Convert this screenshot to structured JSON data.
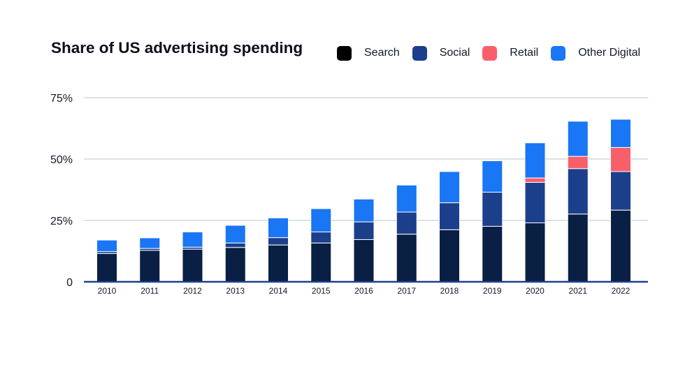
{
  "chart_data": {
    "type": "bar",
    "stacked": true,
    "title": "Share of US advertising spending",
    "xlabel": "",
    "ylabel": "",
    "ylim": [
      0,
      75
    ],
    "yticks": [
      {
        "value": 0,
        "label": "0"
      },
      {
        "value": 25,
        "label": "25%"
      },
      {
        "value": 50,
        "label": "50%"
      },
      {
        "value": 75,
        "label": "75%"
      }
    ],
    "grid": true,
    "legend_position": "top-right",
    "categories": [
      "2010",
      "2011",
      "2012",
      "2013",
      "2014",
      "2015",
      "2016",
      "2017",
      "2018",
      "2019",
      "2020",
      "2021",
      "2022"
    ],
    "series": [
      {
        "name": "Search",
        "color": "#0a1f44",
        "values": [
          11.5,
          12.8,
          13.3,
          14.0,
          15.0,
          15.8,
          17.2,
          19.4,
          21.2,
          22.6,
          24.0,
          27.6,
          29.2
        ]
      },
      {
        "name": "Social",
        "color": "#1c3f8c",
        "values": [
          0.8,
          0.8,
          0.8,
          1.8,
          3.0,
          4.5,
          7.2,
          9.0,
          11.0,
          13.9,
          16.5,
          18.5,
          15.7
        ]
      },
      {
        "name": "Retail",
        "color": "#f95f6b",
        "values": [
          0,
          0,
          0,
          0,
          0,
          0,
          0,
          0,
          0,
          0,
          1.8,
          5.0,
          9.8
        ]
      },
      {
        "name": "Other Digital",
        "color": "#1976f4",
        "values": [
          4.7,
          4.3,
          6.2,
          7.2,
          8.0,
          9.5,
          9.3,
          11.0,
          12.7,
          12.8,
          14.3,
          14.3,
          11.5
        ]
      }
    ]
  }
}
